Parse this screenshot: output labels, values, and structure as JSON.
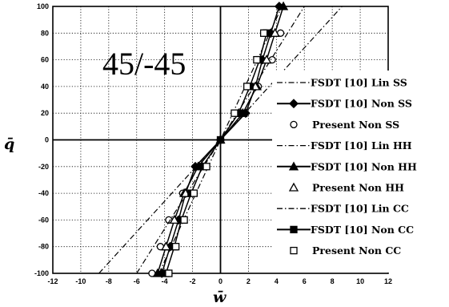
{
  "chart_data": {
    "type": "line",
    "title": "45/-45",
    "xlabel": "w̄",
    "ylabel": "q̄",
    "xlim": [
      -12,
      12
    ],
    "ylim": [
      -100,
      100
    ],
    "xticks": [
      -12,
      -10,
      -8,
      -6,
      -4,
      -2,
      0,
      2,
      4,
      6,
      8,
      10,
      12
    ],
    "yticks": [
      -100,
      -80,
      -60,
      -40,
      -20,
      0,
      20,
      40,
      60,
      80,
      100
    ],
    "grid": true,
    "legend_position": "right",
    "series": [
      {
        "name": "FSDT [10] Lin SS",
        "style": "dashdot",
        "marker": "none",
        "x": [
          -8.7,
          8.7
        ],
        "y": [
          -100,
          100
        ]
      },
      {
        "name": "FSDT [10] Non SS",
        "style": "solid",
        "marker": "filled-diamond",
        "x": [
          -4.2,
          -3.6,
          -3.0,
          -2.5,
          -1.8,
          0,
          1.8,
          2.5,
          3.0,
          3.6,
          4.2
        ],
        "y": [
          -100,
          -80,
          -60,
          -40,
          -20,
          0,
          20,
          40,
          60,
          80,
          100
        ]
      },
      {
        "name": "Present Non SS",
        "style": "none",
        "marker": "open-circle",
        "x": [
          -4.9,
          -4.3,
          -3.7,
          -2.7,
          -1.5,
          1.5,
          2.7,
          3.7,
          4.3
        ],
        "y": [
          -100,
          -80,
          -60,
          -40,
          -20,
          20,
          40,
          60,
          80
        ]
      },
      {
        "name": "FSDT [10] Lin HH",
        "style": "dashdot",
        "marker": "none",
        "x": [
          -6.0,
          6.0
        ],
        "y": [
          -100,
          100
        ]
      },
      {
        "name": "FSDT [10] Non HH",
        "style": "solid",
        "marker": "filled-triangle",
        "x": [
          -4.5,
          -3.9,
          -3.3,
          -2.6,
          -1.6,
          0,
          1.6,
          2.6,
          3.3,
          3.9,
          4.5
        ],
        "y": [
          -100,
          -80,
          -60,
          -40,
          -20,
          0,
          20,
          40,
          60,
          80,
          100
        ]
      },
      {
        "name": "Present Non HH",
        "style": "none",
        "marker": "open-triangle",
        "x": [
          -3.9,
          -3.3,
          -2.5,
          -1.3,
          1.3,
          2.5,
          3.3,
          3.9
        ],
        "y": [
          -80,
          -60,
          -40,
          -20,
          20,
          40,
          60,
          80
        ]
      },
      {
        "name": "FSDT [10] Lin CC",
        "style": "dashdot",
        "marker": "none",
        "x": [
          -4.4,
          4.4
        ],
        "y": [
          -100,
          100
        ]
      },
      {
        "name": "FSDT [10] Non CC",
        "style": "solid",
        "marker": "filled-square",
        "x": [
          -3.9,
          -3.3,
          -2.8,
          -2.1,
          -1.3,
          0,
          1.3,
          2.1,
          2.8,
          3.3
        ],
        "y": [
          -100,
          -80,
          -60,
          -40,
          -20,
          0,
          20,
          40,
          60,
          80
        ]
      },
      {
        "name": "Present Non CC",
        "style": "none",
        "marker": "open-square",
        "x": [
          -3.7,
          -3.2,
          -2.6,
          -1.9,
          -1.0,
          1.0,
          1.9,
          2.6,
          3.1
        ],
        "y": [
          -100,
          -80,
          -60,
          -40,
          -20,
          20,
          40,
          60,
          80
        ]
      }
    ]
  }
}
